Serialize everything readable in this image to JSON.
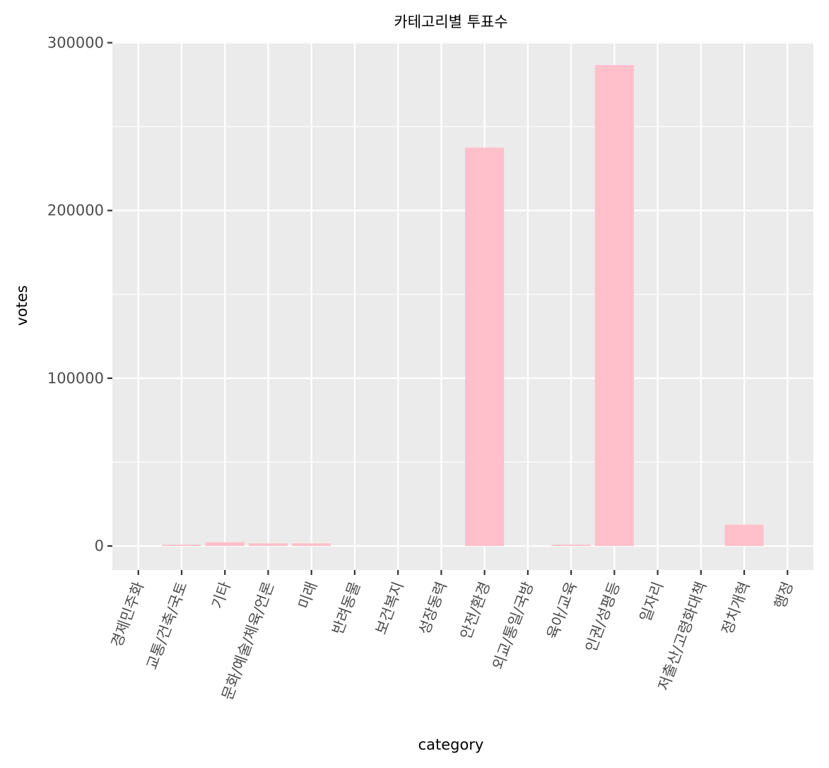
{
  "chart_data": {
    "type": "bar",
    "title": "카테고리별 투표수",
    "xlabel": "category",
    "ylabel": "votes",
    "categories": [
      "경제민주화",
      "교통/건축/국토",
      "기타",
      "문화/예술/체육/언론",
      "미래",
      "반려동물",
      "보건복지",
      "성장동력",
      "안전/환경",
      "외교/통일/국방",
      "육아/교육",
      "인권/성평등",
      "일자리",
      "저출산/고령화대책",
      "정치개혁",
      "행정"
    ],
    "values": [
      0,
      800,
      2200,
      1600,
      1600,
      0,
      0,
      0,
      237500,
      0,
      700,
      286700,
      0,
      0,
      12700,
      0
    ],
    "ylim": [
      -14300,
      300600
    ],
    "yticks": [
      0,
      100000,
      200000,
      300000
    ],
    "ytick_labels": [
      "0",
      "100000",
      "200000",
      "300000"
    ],
    "grid": true,
    "colors": {
      "bar": "#ffc0cb",
      "panel": "#ebebeb",
      "grid": "#ffffff"
    }
  }
}
